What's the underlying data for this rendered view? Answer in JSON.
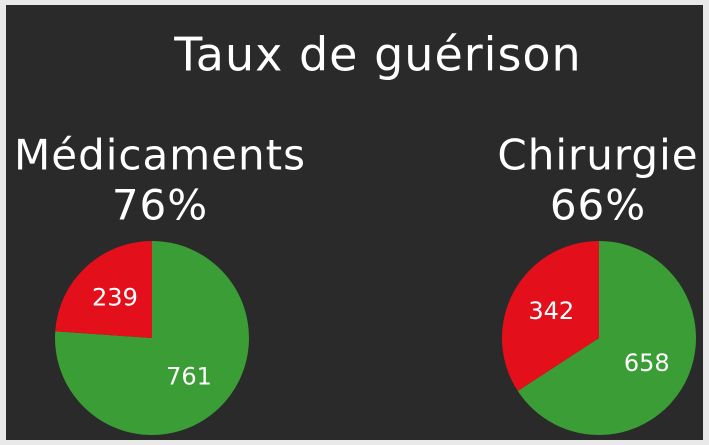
{
  "title": "Taux de guérison",
  "chart_data": [
    {
      "type": "pie",
      "title": "Médicaments",
      "subtitle": "76%",
      "values": [
        761,
        239
      ],
      "colors": [
        "#3a9d35",
        "#e3101c"
      ]
    },
    {
      "type": "pie",
      "title": "Chirurgie",
      "subtitle": "66%",
      "values": [
        658,
        342
      ],
      "colors": [
        "#3a9d35",
        "#e3101c"
      ]
    }
  ]
}
